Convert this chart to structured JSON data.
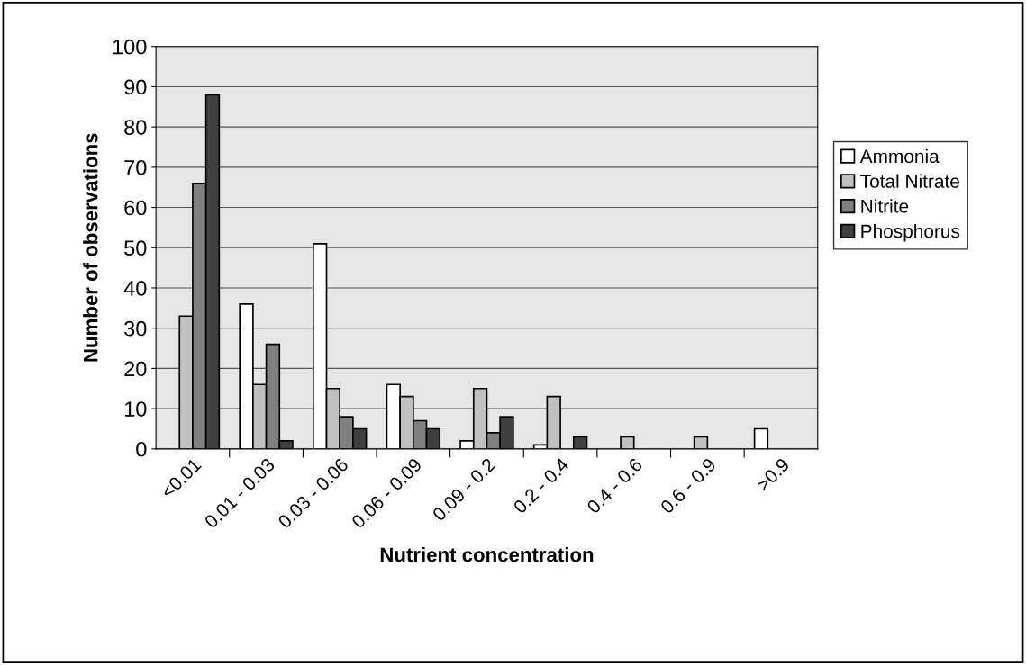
{
  "chart_data": {
    "type": "bar",
    "xlabel": "Nutrient concentration",
    "ylabel": "Number of observations",
    "categories": [
      "<0.01",
      "0.01 - 0.03",
      "0.03 - 0.06",
      "0.06 - 0.09",
      "0.09 - 0.2",
      "0.2 - 0.4",
      "0.4 - 0.6",
      "0.6 - 0.9",
      ">0.9"
    ],
    "series": [
      {
        "name": "Ammonia",
        "color": "#ffffff",
        "values": [
          0,
          36,
          51,
          16,
          2,
          1,
          0,
          0,
          5
        ]
      },
      {
        "name": "Total Nitrate",
        "color": "#c0c0c0",
        "values": [
          33,
          16,
          15,
          13,
          15,
          13,
          3,
          3,
          0
        ]
      },
      {
        "name": "Nitrite",
        "color": "#808080",
        "values": [
          66,
          26,
          8,
          7,
          4,
          0,
          0,
          0,
          0
        ]
      },
      {
        "name": "Phosphorus",
        "color": "#404040",
        "values": [
          88,
          2,
          5,
          5,
          8,
          3,
          0,
          0,
          0
        ]
      }
    ],
    "ylim": [
      0,
      100
    ],
    "yticks": [
      0,
      10,
      20,
      30,
      40,
      50,
      60,
      70,
      80,
      90,
      100
    ],
    "grid": "y",
    "legend": "right"
  }
}
